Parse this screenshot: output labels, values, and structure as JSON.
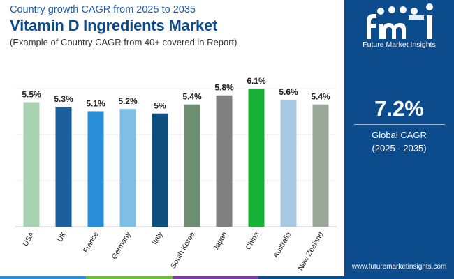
{
  "header": {
    "subtitle": "Country growth CAGR from 2025 to 2035",
    "title": "Vitamin D Ingredients Market",
    "caption": "(Example of Country CAGR from 40+ covered in Report)"
  },
  "chart_data": {
    "type": "bar",
    "categories": [
      "USA",
      "UK",
      "France",
      "Germany",
      "Italy",
      "South Korea",
      "Japan",
      "China",
      "Australia",
      "New Zealand"
    ],
    "values": [
      5.5,
      5.3,
      5.1,
      5.2,
      5.0,
      5.4,
      5.8,
      6.1,
      5.6,
      5.4
    ],
    "data_labels": [
      "5.5%",
      "5.3%",
      "5.1%",
      "5.2%",
      "5%",
      "5.4%",
      "5.8%",
      "6.1%",
      "5.6%",
      "5.4%"
    ],
    "colors": [
      "#a9d3b0",
      "#1c5f9e",
      "#2a8fd6",
      "#7fbfe6",
      "#0d5080",
      "#6f8f72",
      "#808080",
      "#18b034",
      "#a7c8e2",
      "#9aa89a"
    ],
    "ylim": [
      0,
      6.1
    ],
    "grid": true,
    "title": "",
    "xlabel": "",
    "ylabel": ""
  },
  "side_panel": {
    "brand": "Future Market Insights",
    "stat_value": "7.2%",
    "stat_label": "Global CAGR",
    "stat_range": "(2025 - 2035)",
    "website": "www.futuremarketinsights.com",
    "background": "#0d4c8c"
  },
  "footer_colors": [
    "#2e8fd8",
    "#6cbf3c",
    "#7b3ea0",
    "#0d4c8c"
  ]
}
